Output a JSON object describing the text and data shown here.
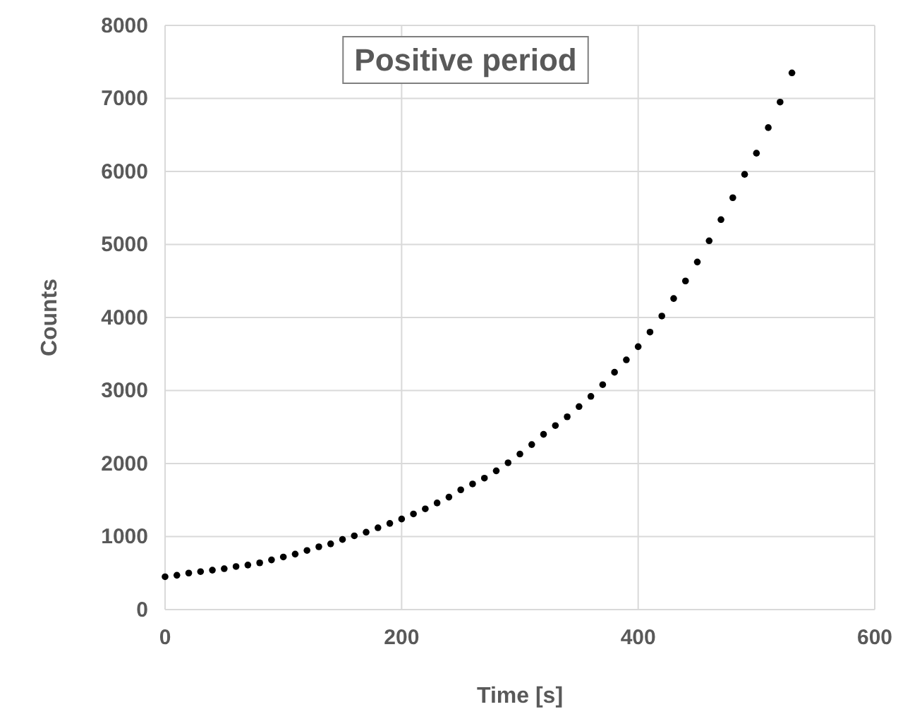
{
  "chart_data": {
    "type": "scatter",
    "title": "Positive period",
    "xlabel": "Time [s]",
    "ylabel": "Counts",
    "x": [
      0,
      10,
      20,
      30,
      40,
      50,
      60,
      70,
      80,
      90,
      100,
      110,
      120,
      130,
      140,
      150,
      160,
      170,
      180,
      190,
      200,
      210,
      220,
      230,
      240,
      250,
      260,
      270,
      280,
      290,
      300,
      310,
      320,
      330,
      340,
      350,
      360,
      370,
      380,
      390,
      400,
      410,
      420,
      430,
      440,
      450,
      460,
      470,
      480,
      490,
      500,
      510,
      520,
      530
    ],
    "series": [
      {
        "color": "#000000",
        "values": [
          450,
          470,
          500,
          520,
          540,
          560,
          590,
          610,
          640,
          680,
          720,
          760,
          810,
          860,
          900,
          960,
          1010,
          1060,
          1120,
          1180,
          1240,
          1310,
          1380,
          1460,
          1540,
          1640,
          1720,
          1800,
          1900,
          2010,
          2130,
          2260,
          2400,
          2520,
          2640,
          2780,
          2920,
          3080,
          3250,
          3420,
          3600,
          3800,
          4020,
          4260,
          4500,
          4760,
          5050,
          5340,
          5640,
          5960,
          6250,
          6600,
          6950,
          7350
        ]
      }
    ],
    "xlim": [
      0,
      600
    ],
    "xticks": [
      0,
      200,
      400,
      600
    ],
    "ylim": [
      0,
      8000
    ],
    "yticks": [
      0,
      1000,
      2000,
      3000,
      4000,
      5000,
      6000,
      7000,
      8000
    ],
    "grid": true,
    "marker": "circle"
  }
}
